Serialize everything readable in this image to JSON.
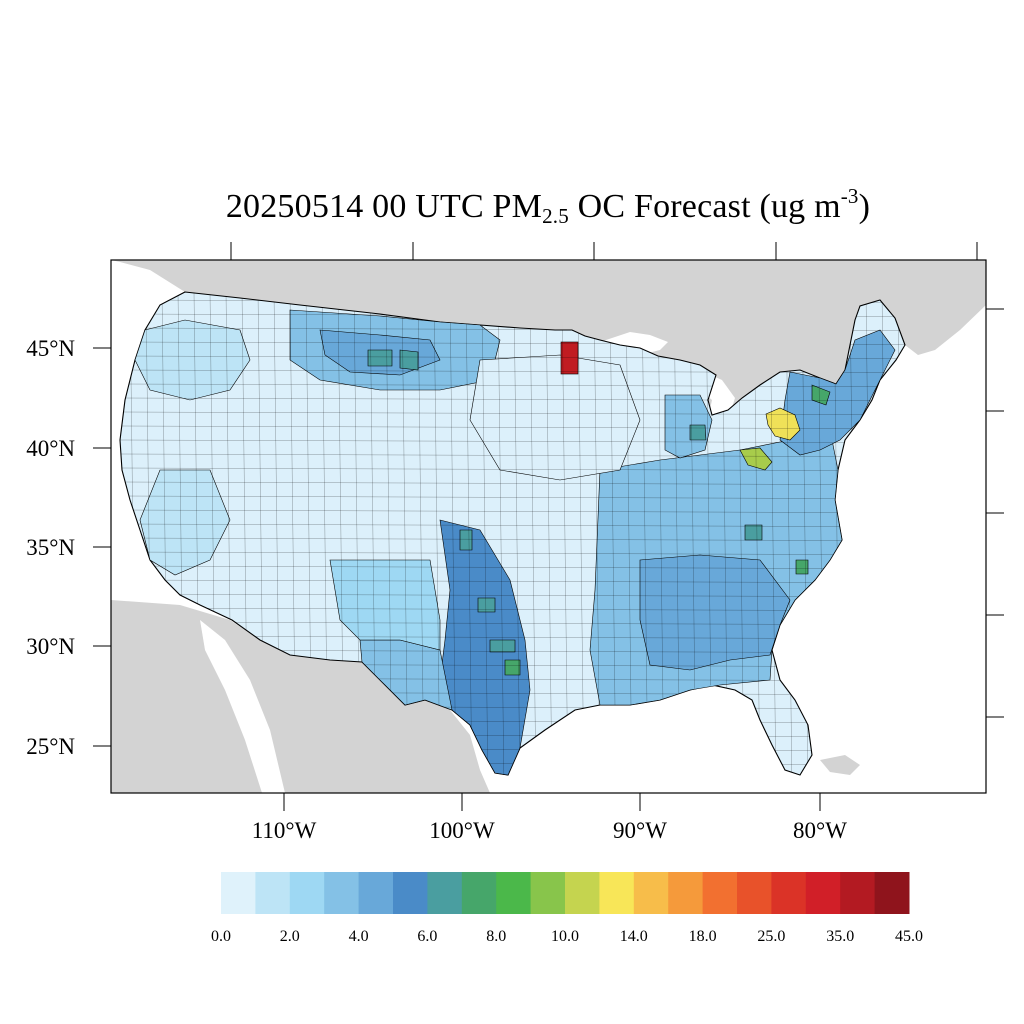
{
  "title": {
    "prefix": "20250514 00 UTC PM",
    "subscript": "2.5",
    "middle": " OC Forecast (ug m",
    "superscript": "-3",
    "suffix": ")"
  },
  "map": {
    "projection": "lambert-conformal",
    "region": "CONUS",
    "lat_labels": [
      "45°N",
      "40°N",
      "35°N",
      "30°N",
      "25°N"
    ],
    "lon_labels": [
      "110°W",
      "100°W",
      "90°W",
      "80°W"
    ],
    "ocean_color": "#ffffff",
    "land_outside_color": "#d3d3d3",
    "boundary_color": "#000000"
  },
  "colorbar": {
    "colors": [
      "#dff2fb",
      "#bde4f6",
      "#9ed8f3",
      "#84c1e6",
      "#68a8d9",
      "#4a8bc8",
      "#4a9ea0",
      "#46a66a",
      "#4bb84a",
      "#88c54b",
      "#c5d44f",
      "#f8e658",
      "#f7bd4a",
      "#f59a3b",
      "#f27030",
      "#e8522a",
      "#db3327",
      "#d11f28",
      "#b31a22",
      "#8f141c"
    ],
    "labels": [
      "0.0",
      "2.0",
      "4.0",
      "6.0",
      "8.0",
      "10.0",
      "14.0",
      "18.0",
      "25.0",
      "35.0",
      "45.0"
    ]
  },
  "legend_semantics": {
    "variable": "PM2.5 organic carbon",
    "units": "ug m-3",
    "dominant_level": "0.0-6.0 across most of the map",
    "notable_highs": [
      "northern Minnesota (35.0-45.0)",
      "northern Ohio / western Pennsylvania (10.0-18.0)",
      "central Texas (6.0-10.0)"
    ]
  }
}
